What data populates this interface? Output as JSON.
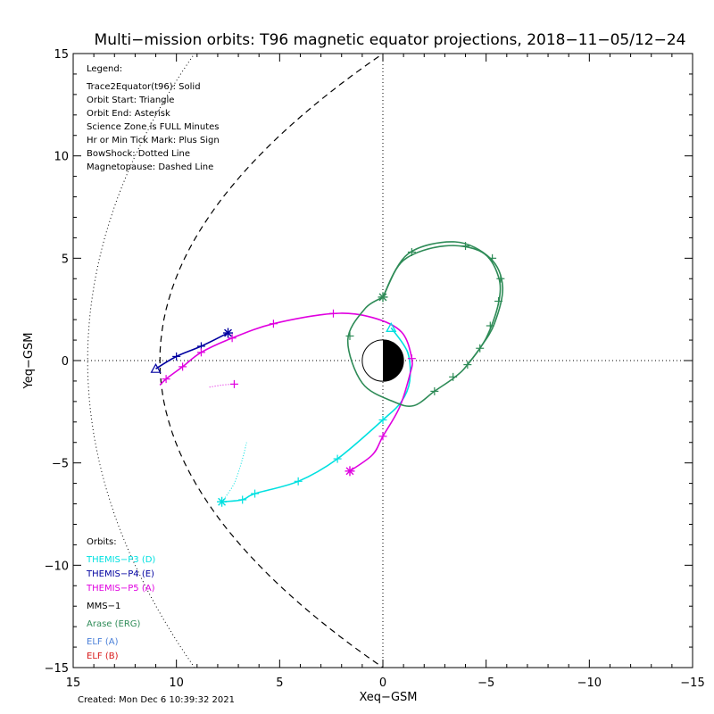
{
  "chart_data": {
    "type": "scatter",
    "title": "Multi−mission orbits: T96 magnetic equator projections, 2018−11−05/12−24",
    "xlabel": "Xeq−GSM",
    "ylabel": "Yeq−GSM",
    "xlim": [
      15,
      -15
    ],
    "ylim": [
      15,
      -15
    ],
    "x_ticks": [
      15,
      10,
      5,
      0,
      -5,
      -10,
      -15
    ],
    "x_tick_labels": [
      "15",
      "10",
      "5",
      "0",
      "−5",
      "−10",
      "−15"
    ],
    "y_ticks": [
      -15,
      -10,
      -5,
      0,
      5,
      10,
      15
    ],
    "y_tick_labels": [
      "−15",
      "−10",
      "−5",
      "0",
      "5",
      "10",
      "15"
    ],
    "legend_lines": [
      "Legend:",
      "Trace2Equator(t96): Solid",
      "Orbit Start: Triangle",
      "Orbit End: Asterisk",
      "Science Zone is FULL Minutes",
      "Hr or Min Tick Mark: Plus Sign",
      "BowShock: Dotted Line",
      "Magnetopause: Dashed Line"
    ],
    "orbits_heading": "Orbits:",
    "orbit_labels": [
      {
        "text": "THEMIS−P3 (D)",
        "color": "#00e0e0"
      },
      {
        "text": "THEMIS−P4 (E)",
        "color": "#0000a0"
      },
      {
        "text": "THEMIS−P5 (A)",
        "color": "#e000e0"
      },
      {
        "text": "MMS−1",
        "color": "#000000"
      },
      {
        "text": "Arase (ERG)",
        "color": "#2e8b57"
      },
      {
        "text": "ELF (A)",
        "color": "#4a7fd8"
      },
      {
        "text": "ELF (B)",
        "color": "#d81818"
      }
    ],
    "series": [
      {
        "name": "THEMIS−P3 (D)",
        "color": "#00e0e0",
        "points": [
          [
            -0.4,
            1.6
          ],
          [
            -1.2,
            0.4
          ],
          [
            -1.3,
            -1.0
          ],
          [
            -0.9,
            -2.0
          ],
          [
            0.0,
            -2.9
          ],
          [
            2.2,
            -4.8
          ],
          [
            4.1,
            -5.9
          ],
          [
            6.2,
            -6.5
          ],
          [
            6.8,
            -6.8
          ],
          [
            7.8,
            -6.9
          ]
        ],
        "ticks": [
          [
            0.0,
            -2.9
          ],
          [
            2.2,
            -4.8
          ],
          [
            4.1,
            -5.9
          ],
          [
            6.2,
            -6.5
          ],
          [
            6.8,
            -6.8
          ]
        ],
        "start": [
          -0.4,
          1.6
        ],
        "end": [
          7.8,
          -6.9
        ],
        "dotted_branch": [
          [
            7.8,
            -6.9
          ],
          [
            7.2,
            -6.0
          ],
          [
            6.8,
            -4.8
          ],
          [
            6.6,
            -4.0
          ]
        ]
      },
      {
        "name": "THEMIS−P4 (E)",
        "color": "#0000a0",
        "points": [
          [
            11.0,
            -0.4
          ],
          [
            10.0,
            0.2
          ],
          [
            8.8,
            0.7
          ],
          [
            7.5,
            1.35
          ]
        ],
        "ticks": [
          [
            10.0,
            0.2
          ],
          [
            8.8,
            0.7
          ]
        ],
        "start": [
          11.0,
          -0.4
        ],
        "end": [
          7.5,
          1.35
        ]
      },
      {
        "name": "THEMIS−P5 (A)",
        "color": "#e000e0",
        "points": [
          [
            1.6,
            -5.4
          ],
          [
            0.5,
            -4.6
          ],
          [
            0.0,
            -3.7
          ],
          [
            -0.8,
            -2.3
          ],
          [
            -1.3,
            -0.7
          ],
          [
            -1.4,
            0.1
          ],
          [
            -0.9,
            1.4
          ],
          [
            0.5,
            2.1
          ],
          [
            2.4,
            2.3
          ],
          [
            5.3,
            1.8
          ],
          [
            7.3,
            1.1
          ],
          [
            8.8,
            0.4
          ],
          [
            9.7,
            -0.3
          ],
          [
            10.5,
            -0.9
          ],
          [
            10.8,
            -1.2
          ]
        ],
        "ticks": [
          [
            0.0,
            -3.7
          ],
          [
            -1.4,
            0.1
          ],
          [
            2.4,
            2.3
          ],
          [
            5.3,
            1.8
          ],
          [
            7.3,
            1.1
          ],
          [
            8.8,
            0.4
          ],
          [
            9.7,
            -0.3
          ],
          [
            10.5,
            -0.9
          ]
        ],
        "start": null,
        "end": [
          1.6,
          -5.4
        ],
        "dotted_branch": [
          [
            8.4,
            -1.3
          ],
          [
            7.8,
            -1.2
          ],
          [
            7.2,
            -1.15
          ]
        ]
      },
      {
        "name": "Arase (ERG)",
        "color": "#2e8b57",
        "points": [
          [
            0.0,
            3.1
          ],
          [
            -1.0,
            4.9
          ],
          [
            -3.0,
            5.6
          ],
          [
            -4.8,
            5.3
          ],
          [
            -5.6,
            4.1
          ],
          [
            -5.6,
            2.8
          ],
          [
            -5.0,
            1.1
          ],
          [
            -4.1,
            -0.2
          ],
          [
            -3.5,
            -0.8
          ],
          [
            -2.5,
            -1.5
          ],
          [
            -1.5,
            -2.2
          ],
          [
            -0.5,
            -2.0
          ],
          [
            1.0,
            -1.1
          ],
          [
            1.7,
            1.0
          ],
          [
            0.9,
            2.5
          ],
          [
            0.0,
            3.1
          ]
        ],
        "outer_loop": [
          [
            0.0,
            3.1
          ],
          [
            -1.2,
            5.2
          ],
          [
            -3.5,
            5.8
          ],
          [
            -5.2,
            5.0
          ],
          [
            -5.8,
            3.6
          ],
          [
            -5.4,
            1.8
          ],
          [
            -4.7,
            0.6
          ],
          [
            -4.1,
            -0.2
          ]
        ],
        "ticks": [
          [
            -1.4,
            5.3
          ],
          [
            -4.0,
            5.6
          ],
          [
            -5.3,
            5.0
          ],
          [
            -5.7,
            4.0
          ],
          [
            -5.6,
            2.9
          ],
          [
            -5.2,
            1.7
          ],
          [
            -4.7,
            0.6
          ],
          [
            -4.1,
            -0.2
          ],
          [
            -3.4,
            -0.8
          ],
          [
            -2.5,
            -1.5
          ],
          [
            1.6,
            1.2
          ]
        ],
        "start": null,
        "end": [
          0.0,
          3.1
        ]
      }
    ],
    "extra_markers": [
      {
        "series": "THEMIS−P3 (D)",
        "kind": "triangle",
        "x": -0.4,
        "y": 1.6
      },
      {
        "series": "THEMIS−P5 (A)",
        "kind": "plus",
        "x": 7.2,
        "y": -1.15
      }
    ],
    "bow_shock": {
      "style": "dotted",
      "nose_x": 14.3
    },
    "magnetopause": {
      "style": "dashed",
      "nose_x": 10.8
    },
    "earth": {
      "radius_re": 1.0,
      "dayside_fill": "#ffffff",
      "nightside_fill": "#000000"
    },
    "grid": false
  },
  "created_text": "Created: Mon Dec  6 10:39:32 2021"
}
